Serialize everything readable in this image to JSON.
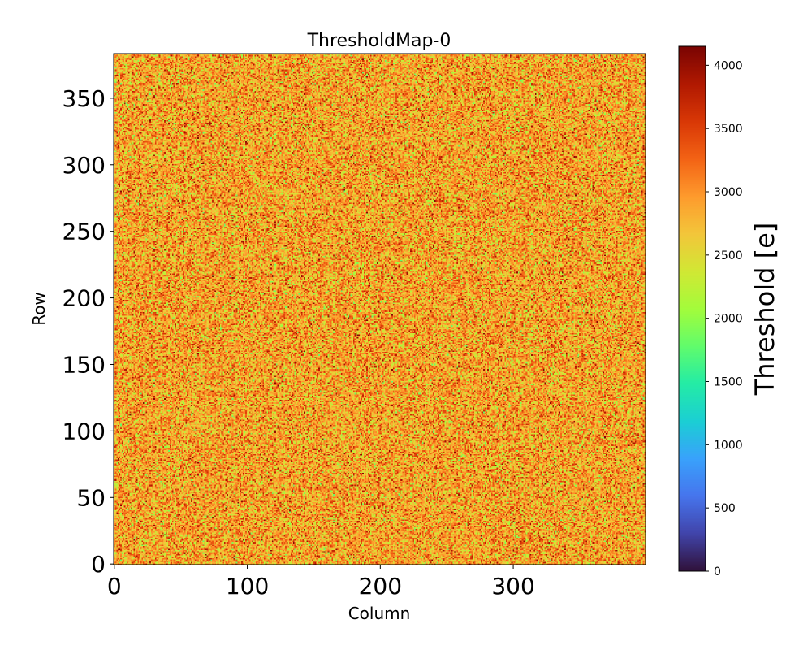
{
  "chart_data": {
    "type": "heatmap",
    "title": "ThresholdMap-0",
    "xlabel": "Column",
    "ylabel": "Row",
    "colorbar_label": "Threshold [e]",
    "colormap": "turbo",
    "xlim": [
      -0.5,
      399.5
    ],
    "ylim": [
      -0.5,
      383.5
    ],
    "n_columns": 400,
    "n_rows": 384,
    "clim": [
      0,
      4150
    ],
    "xticks": [
      0,
      100,
      200,
      300
    ],
    "yticks": [
      0,
      50,
      100,
      150,
      200,
      250,
      300,
      350
    ],
    "cbar_ticks": [
      0,
      500,
      1000,
      1500,
      2000,
      2500,
      3000,
      3500,
      4000
    ],
    "value_distribution": {
      "mean": 2900,
      "std": 420,
      "note_min": 1800,
      "note_max": 4100
    },
    "grid": false,
    "colormap_stops": [
      "#30123b",
      "#4145ab",
      "#4675ed",
      "#39a2fc",
      "#1bcfd4",
      "#24eca6",
      "#61fc6c",
      "#a4fc3b",
      "#d1e834",
      "#f3c63a",
      "#fe9b2d",
      "#f36315",
      "#d93806",
      "#b11901",
      "#7a0402"
    ]
  }
}
